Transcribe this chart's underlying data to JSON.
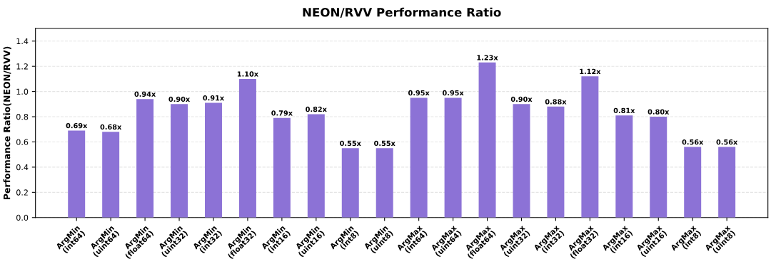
{
  "chart_data": {
    "type": "bar",
    "title": "NEON/RVV Performance Ratio",
    "ylabel": "Performance Ratio(NEON/RVV)",
    "categories": [
      "ArgMin\n(int64)",
      "ArgMin\n(uint64)",
      "ArgMin\n(float64)",
      "ArgMin\n(uint32)",
      "ArgMin\n(int32)",
      "ArgMin\n(float32)",
      "ArgMin\n(int16)",
      "ArgMin\n(uint16)",
      "ArgMin\n(int8)",
      "ArgMin\n(uint8)",
      "ArgMax\n(int64)",
      "ArgMax\n(uint64)",
      "ArgMax\n(float64)",
      "ArgMax\n(uint32)",
      "ArgMax\n(int32)",
      "ArgMax\n(float32)",
      "ArgMax\n(int16)",
      "ArgMax\n(uint16)",
      "ArgMax\n(int8)",
      "ArgMax\n(uint8)"
    ],
    "values": [
      0.69,
      0.68,
      0.94,
      0.9,
      0.91,
      1.1,
      0.79,
      0.82,
      0.55,
      0.55,
      0.95,
      0.95,
      1.23,
      0.9,
      0.88,
      1.12,
      0.81,
      0.8,
      0.56,
      0.56
    ],
    "value_labels": [
      "0.69x",
      "0.68x",
      "0.94x",
      "0.90x",
      "0.91x",
      "1.10x",
      "0.79x",
      "0.82x",
      "0.55x",
      "0.55x",
      "0.95x",
      "0.95x",
      "1.23x",
      "0.90x",
      "0.88x",
      "1.12x",
      "0.81x",
      "0.80x",
      "0.56x",
      "0.56x"
    ],
    "color": "#8c72d6",
    "ylim": [
      0,
      1.5
    ],
    "yticks": [
      {
        "value": 0,
        "label": "0.0"
      },
      0.2,
      0.4,
      0.6,
      0.8,
      {
        "value": 1,
        "label": "1.0"
      },
      1.2,
      1.4
    ],
    "grid": "y",
    "line_style": "dashed"
  }
}
